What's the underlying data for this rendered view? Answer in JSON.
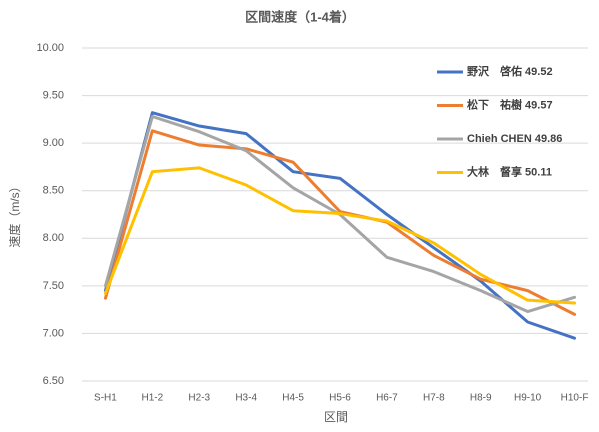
{
  "chart_data": {
    "type": "line",
    "title": "区間速度（1-4着）",
    "x_label": "区間",
    "y_label": "速度（m/s）",
    "categories": [
      "S-H1",
      "H1-2",
      "H2-3",
      "H3-4",
      "H4-5",
      "H5-6",
      "H6-7",
      "H7-8",
      "H8-9",
      "H9-10",
      "H10-F"
    ],
    "series": [
      {
        "name": "野沢　啓佑 49.52",
        "color": "#4472c4",
        "values": [
          7.45,
          9.32,
          9.18,
          9.1,
          8.7,
          8.63,
          8.25,
          7.9,
          7.55,
          7.12,
          6.95
        ]
      },
      {
        "name": "松下　祐樹 49.57",
        "color": "#ed7d31",
        "values": [
          7.37,
          9.13,
          8.98,
          8.94,
          8.8,
          8.28,
          8.17,
          7.82,
          7.57,
          7.45,
          7.2
        ]
      },
      {
        "name": "Chieh CHEN 49.86",
        "color": "#a5a5a5",
        "values": [
          7.5,
          9.28,
          9.12,
          8.92,
          8.53,
          8.25,
          7.8,
          7.65,
          7.45,
          7.23,
          7.38
        ]
      },
      {
        "name": "大林　督享 50.11",
        "color": "#ffc000",
        "values": [
          7.42,
          8.7,
          8.74,
          8.56,
          8.29,
          8.26,
          8.18,
          7.95,
          7.62,
          7.35,
          7.32
        ]
      }
    ],
    "ylim": [
      6.5,
      10
    ],
    "yticks": [
      {
        "value": 6.5,
        "label": "6.50"
      },
      {
        "value": 7,
        "label": "7.00"
      },
      {
        "value": 7.5,
        "label": "7.50"
      },
      {
        "value": 8,
        "label": "8.00"
      },
      {
        "value": 8.5,
        "label": "8.50"
      },
      {
        "value": 9,
        "label": "9.00"
      },
      {
        "value": 9.5,
        "label": "9.50"
      },
      {
        "value": 10,
        "label": "10.00"
      }
    ],
    "grid": true,
    "legend": "right"
  }
}
